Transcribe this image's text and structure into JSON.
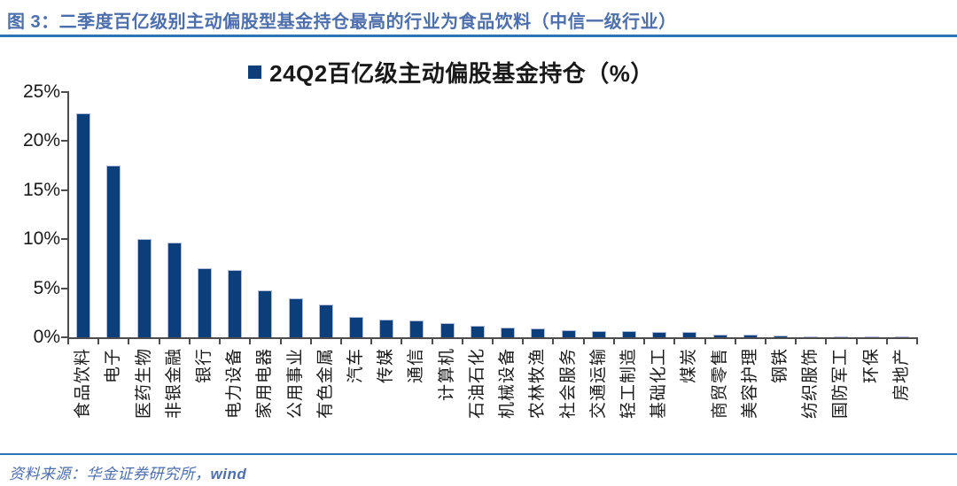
{
  "header": {
    "title": "图 3：二季度百亿级别主动偏股型基金持仓最高的行业为食品饮料（中信一级行业）",
    "title_color": "#4e6fad",
    "rule_color": "#2e75b6"
  },
  "chart_data": {
    "type": "bar",
    "title": "",
    "legend": {
      "label": "24Q2百亿级主动偏股基金持仓（%）",
      "marker_color": "#0d3e7c",
      "position": "top-center"
    },
    "categories": [
      "食品饮料",
      "电子",
      "医药生物",
      "非银金融",
      "银行",
      "电力设备",
      "家用电器",
      "公用事业",
      "有色金属",
      "汽车",
      "传媒",
      "通信",
      "计算机",
      "石油石化",
      "机械设备",
      "农林牧渔",
      "社会服务",
      "交通运输",
      "轻工制造",
      "基础化工",
      "煤炭",
      "商贸零售",
      "美容护理",
      "钢铁",
      "纺织服饰",
      "国防军工",
      "环保",
      "房地产"
    ],
    "values": [
      22.8,
      17.5,
      10.0,
      9.7,
      7.0,
      6.9,
      4.8,
      4.0,
      3.3,
      2.1,
      1.8,
      1.7,
      1.4,
      1.2,
      1.0,
      0.9,
      0.7,
      0.6,
      0.6,
      0.55,
      0.5,
      0.3,
      0.25,
      0.15,
      0.12,
      0.1,
      0.08,
      0.05
    ],
    "ylim": [
      0,
      25
    ],
    "yticks": [
      {
        "value": 0,
        "label": "0%"
      },
      {
        "value": 5,
        "label": "5%"
      },
      {
        "value": 10,
        "label": "10%"
      },
      {
        "value": 15,
        "label": "15%"
      },
      {
        "value": 20,
        "label": "20%"
      },
      {
        "value": 25,
        "label": "25%"
      }
    ],
    "grid": false,
    "bar_color": "#0d3e7c",
    "bar_border_color": "#b1bdda",
    "axis_color": "#4d4d4d",
    "tick_label_color": "#1a1a1a"
  },
  "footer": {
    "source_prefix": "资料来源：华金证券研究所，",
    "source_brand": "wind",
    "rule_color": "#2e75b6"
  }
}
